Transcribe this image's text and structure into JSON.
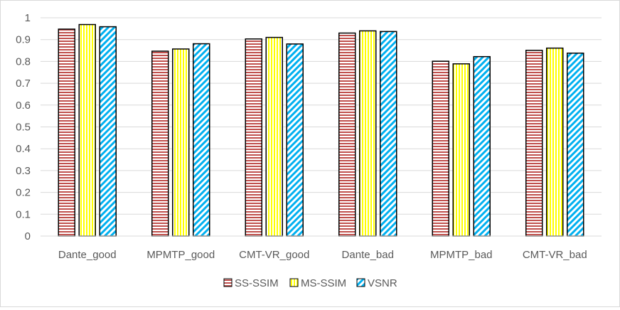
{
  "chart_data": {
    "type": "bar",
    "title": "",
    "xlabel": "",
    "ylabel": "",
    "categories": [
      "Dante_good",
      "MPMTP_good",
      "CMT-VR_good",
      "Dante_bad",
      "MPMTP_bad",
      "CMT-VR_bad"
    ],
    "series": [
      {
        "name": "SS-SSIM",
        "values": [
          0.948,
          0.847,
          0.903,
          0.93,
          0.801,
          0.851
        ],
        "color": "#c0504d",
        "pattern": "horizontal"
      },
      {
        "name": "MS-SSIM",
        "values": [
          0.969,
          0.857,
          0.91,
          0.94,
          0.789,
          0.861
        ],
        "color": "#ffff00",
        "pattern": "vertical"
      },
      {
        "name": "VSNR",
        "values": [
          0.959,
          0.881,
          0.88,
          0.937,
          0.822,
          0.838
        ],
        "color": "#00b0f0",
        "pattern": "diagonal"
      }
    ],
    "ylim": [
      0,
      1
    ],
    "yticks": [
      "0",
      "0.1",
      "0.2",
      "0.3",
      "0.4",
      "0.5",
      "0.6",
      "0.7",
      "0.8",
      "0.9",
      "1"
    ],
    "grid": true,
    "legend": "bottom"
  }
}
